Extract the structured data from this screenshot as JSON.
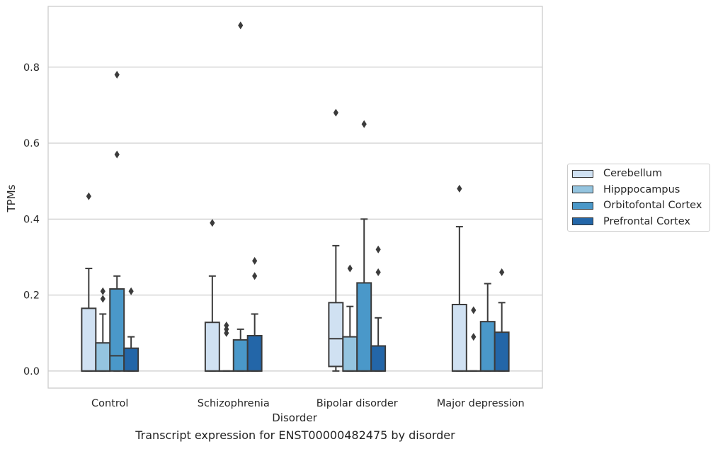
{
  "caption": "Transcript expression for ENST00000482475 by disorder",
  "chart_data": {
    "type": "box",
    "title": "",
    "xlabel": "Disorder",
    "ylabel": "TPMs",
    "ylim": [
      -0.045,
      0.96
    ],
    "yticks": [
      0.0,
      0.2,
      0.4,
      0.6,
      0.8
    ],
    "ytick_labels": [
      "0.0",
      "0.2",
      "0.4",
      "0.6",
      "0.8"
    ],
    "grid": "horizontal",
    "legend_position": "right",
    "categories": [
      "Control",
      "Schizophrenia",
      "Bipolar disorder",
      "Major depression"
    ],
    "series": [
      {
        "name": "Cerebellum",
        "color": "#d0e1f2",
        "boxes": [
          {
            "q1": 0.0,
            "median": 0.0,
            "q3": 0.165,
            "whislo": 0.0,
            "whishi": 0.27,
            "fliers": [
              0.46
            ]
          },
          {
            "q1": 0.0,
            "median": 0.0,
            "q3": 0.128,
            "whislo": 0.0,
            "whishi": 0.25,
            "fliers": [
              0.39
            ]
          },
          {
            "q1": 0.012,
            "median": 0.085,
            "q3": 0.18,
            "whislo": 0.0,
            "whishi": 0.33,
            "fliers": [
              0.68
            ]
          },
          {
            "q1": 0.0,
            "median": 0.0,
            "q3": 0.175,
            "whislo": 0.0,
            "whishi": 0.38,
            "fliers": [
              0.48
            ]
          }
        ]
      },
      {
        "name": "Hipppocampus",
        "color": "#94c4df",
        "boxes": [
          {
            "q1": 0.0,
            "median": 0.0,
            "q3": 0.074,
            "whislo": 0.0,
            "whishi": 0.15,
            "fliers": [
              0.19,
              0.21
            ]
          },
          {
            "q1": 0.0,
            "median": 0.0,
            "q3": 0.0,
            "whislo": 0.0,
            "whishi": 0.0,
            "fliers": [
              0.1,
              0.11,
              0.12
            ]
          },
          {
            "q1": 0.0,
            "median": 0.0,
            "q3": 0.09,
            "whislo": 0.0,
            "whishi": 0.17,
            "fliers": [
              0.27
            ]
          },
          {
            "q1": 0.0,
            "median": 0.0,
            "q3": 0.0,
            "whislo": 0.0,
            "whishi": 0.0,
            "fliers": [
              0.09,
              0.16
            ]
          }
        ]
      },
      {
        "name": "Orbitofontal Cortex",
        "color": "#4a98c9",
        "boxes": [
          {
            "q1": 0.0,
            "median": 0.04,
            "q3": 0.216,
            "whislo": 0.0,
            "whishi": 0.25,
            "fliers": [
              0.57,
              0.78
            ]
          },
          {
            "q1": 0.0,
            "median": 0.0,
            "q3": 0.082,
            "whislo": 0.0,
            "whishi": 0.11,
            "fliers": [
              0.91
            ]
          },
          {
            "q1": 0.0,
            "median": 0.0,
            "q3": 0.232,
            "whislo": 0.0,
            "whishi": 0.4,
            "fliers": [
              0.65
            ]
          },
          {
            "q1": 0.0,
            "median": 0.0,
            "q3": 0.13,
            "whislo": 0.0,
            "whishi": 0.23,
            "fliers": []
          }
        ]
      },
      {
        "name": "Prefrontal Cortex",
        "color": "#2366a8",
        "boxes": [
          {
            "q1": 0.0,
            "median": 0.0,
            "q3": 0.06,
            "whislo": 0.0,
            "whishi": 0.09,
            "fliers": [
              0.21
            ]
          },
          {
            "q1": 0.0,
            "median": 0.0,
            "q3": 0.093,
            "whislo": 0.0,
            "whishi": 0.15,
            "fliers": [
              0.25,
              0.29
            ]
          },
          {
            "q1": 0.0,
            "median": 0.0,
            "q3": 0.066,
            "whislo": 0.0,
            "whishi": 0.14,
            "fliers": [
              0.26,
              0.32
            ]
          },
          {
            "q1": 0.0,
            "median": 0.0,
            "q3": 0.102,
            "whislo": 0.0,
            "whishi": 0.18,
            "fliers": [
              0.26
            ]
          }
        ]
      }
    ]
  }
}
